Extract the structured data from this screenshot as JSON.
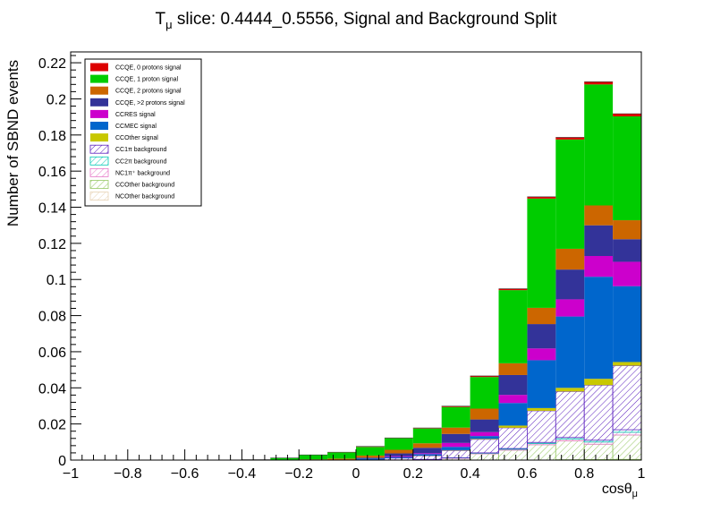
{
  "chart_data": {
    "type": "bar",
    "stacked": true,
    "title": "T",
    "title_sub": "μ",
    "title_rest": " slice: 0.4444_0.5556, Signal and Background Split",
    "xlabel": "cosθ",
    "xlabel_sub": "μ",
    "ylabel": "Number of SBND events",
    "xlim": [
      -1,
      1
    ],
    "ylim": [
      0,
      0.226
    ],
    "bin_edges": [
      -1.0,
      -0.9,
      -0.8,
      -0.7,
      -0.6,
      -0.5,
      -0.4,
      -0.3,
      -0.2,
      -0.1,
      0.0,
      0.1,
      0.2,
      0.3,
      0.4,
      0.5,
      0.6,
      0.7,
      0.8,
      0.9,
      1.0
    ],
    "x_ticks": [
      "−1",
      "−0.8",
      "−0.6",
      "−0.4",
      "−0.2",
      "0",
      "0.2",
      "0.4",
      "0.6",
      "0.8",
      "1"
    ],
    "x_tick_values": [
      -1,
      -0.8,
      -0.6,
      -0.4,
      -0.2,
      0,
      0.2,
      0.4,
      0.6,
      0.8,
      1
    ],
    "y_ticks": [
      "0",
      "0.02",
      "0.04",
      "0.06",
      "0.08",
      "0.1",
      "0.12",
      "0.14",
      "0.16",
      "0.18",
      "0.2",
      "0.22"
    ],
    "y_tick_values": [
      0,
      0.02,
      0.04,
      0.06,
      0.08,
      0.1,
      0.12,
      0.14,
      0.16,
      0.18,
      0.2,
      0.22
    ],
    "legend_position": "top-left",
    "series": [
      {
        "name": "NCOther background",
        "kind": "background",
        "color": "#e6d2b4",
        "values": [
          0,
          0,
          0,
          0,
          0,
          0,
          0,
          0,
          0,
          0,
          0,
          0,
          0,
          0,
          0,
          0,
          0,
          0.0002,
          0.0003,
          0.0004
        ]
      },
      {
        "name": "CCOther background",
        "kind": "background",
        "color": "#96c864",
        "values": [
          0,
          0,
          0,
          0,
          0,
          0,
          0,
          0,
          0,
          0,
          0,
          0,
          0.0002,
          0.001,
          0.0035,
          0.0055,
          0.0085,
          0.0105,
          0.0085,
          0.0135
        ]
      },
      {
        "name": "NC1π⁺ background",
        "kind": "background",
        "color": "#e678c8",
        "values": [
          0,
          0,
          0,
          0,
          0,
          0,
          0,
          0,
          0,
          0,
          0,
          0.0001,
          0.0001,
          0.0002,
          0.0003,
          0.0005,
          0.0007,
          0.001,
          0.0012,
          0.0015
        ]
      },
      {
        "name": "CC2π background",
        "kind": "background",
        "color": "#00c8b4",
        "values": [
          0,
          0,
          0,
          0,
          0,
          0,
          0,
          0,
          0,
          0,
          0,
          0,
          0.0001,
          0.0001,
          0.0002,
          0.0004,
          0.0006,
          0.0008,
          0.001,
          0.0014
        ]
      },
      {
        "name": "CC1π background",
        "kind": "background",
        "color": "#5a1ebe",
        "values": [
          0,
          0,
          0,
          0,
          0,
          0,
          0,
          0,
          0,
          0,
          0.0003,
          0.001,
          0.002,
          0.004,
          0.0075,
          0.0115,
          0.0175,
          0.0255,
          0.0305,
          0.0355
        ]
      },
      {
        "name": "CCOther signal",
        "kind": "signal",
        "color": "#c8c800",
        "values": [
          0,
          0,
          0,
          0,
          0,
          0,
          0,
          0,
          0,
          0,
          0,
          0,
          0.0001,
          0.0002,
          0.0003,
          0.0012,
          0.0015,
          0.002,
          0.0035,
          0.002
        ]
      },
      {
        "name": "CCMEC signal",
        "kind": "signal",
        "color": "#0066cc",
        "values": [
          0,
          0,
          0,
          0,
          0,
          0,
          0,
          0,
          0.0002,
          0.0002,
          0.0005,
          0.0006,
          0.0008,
          0.0018,
          0.0015,
          0.0125,
          0.0265,
          0.0395,
          0.0565,
          0.042
        ]
      },
      {
        "name": "CCRES signal",
        "kind": "signal",
        "color": "#cc00cc",
        "values": [
          0,
          0,
          0,
          0,
          0,
          0,
          0,
          0,
          0,
          0,
          0,
          0.0005,
          0.0005,
          0.0022,
          0.0022,
          0.0045,
          0.0065,
          0.0095,
          0.0115,
          0.0135
        ]
      },
      {
        "name": "CCQE, >2 protons signal",
        "kind": "signal",
        "color": "#333399",
        "values": [
          0,
          0,
          0,
          0,
          0,
          0,
          0,
          0,
          0,
          0,
          0.0005,
          0.0015,
          0.003,
          0.005,
          0.007,
          0.011,
          0.0135,
          0.0165,
          0.017,
          0.0125
        ]
      },
      {
        "name": "CCQE, 2 protons signal",
        "kind": "signal",
        "color": "#cc6600",
        "values": [
          0,
          0,
          0,
          0,
          0,
          0,
          0,
          0,
          0.0002,
          0.0006,
          0.0012,
          0.002,
          0.0025,
          0.0035,
          0.006,
          0.0065,
          0.009,
          0.0115,
          0.011,
          0.0105
        ]
      },
      {
        "name": "CCQE, 1 proton signal",
        "kind": "signal",
        "color": "#00cc00",
        "values": [
          0,
          0,
          0,
          0,
          0,
          0,
          0.0002,
          0.0012,
          0.0024,
          0.0034,
          0.0048,
          0.0064,
          0.0082,
          0.0114,
          0.0175,
          0.0405,
          0.0605,
          0.0605,
          0.067,
          0.0575
        ]
      },
      {
        "name": "CCQE, 0 protons signal",
        "kind": "signal",
        "color": "#dd0000",
        "values": [
          0,
          0,
          0,
          0,
          0,
          0,
          0,
          0,
          0.0001,
          0.0002,
          0.0003,
          0.0002,
          0.0003,
          0.0005,
          0.0006,
          0.0008,
          0.001,
          0.0012,
          0.0015,
          0.0015
        ]
      }
    ],
    "legend": [
      "CCQE, 0 protons signal",
      "CCQE, 1 proton signal",
      "CCQE, 2 protons signal",
      "CCQE, >2 protons signal",
      "CCRES signal",
      "CCMEC signal",
      "CCOther signal",
      "CC1π background",
      "CC2π background",
      "NC1π⁺ background",
      "CCOther background",
      "NCOther background"
    ]
  }
}
